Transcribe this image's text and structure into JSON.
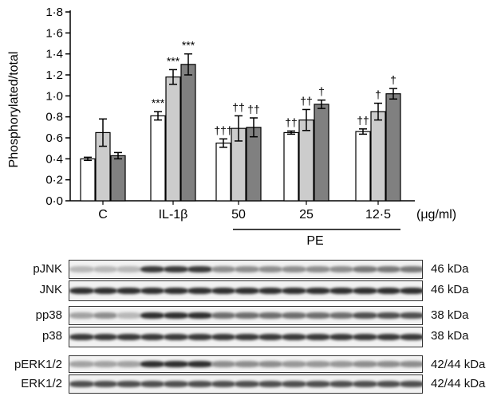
{
  "chart_data": {
    "type": "bar",
    "ylabel": "Phosphorylated/total",
    "ylim": [
      0,
      1.8
    ],
    "yticks": [
      "0·0",
      "0·2",
      "0·4",
      "0·6",
      "0·8",
      "1·0",
      "1·2",
      "1·4",
      "1·6",
      "1·8"
    ],
    "categories": [
      "C",
      "IL-1β",
      "50",
      "25",
      "12·5"
    ],
    "unit": "(μg/ml)",
    "group_label": "PE",
    "series": [
      {
        "color": "#ffffff",
        "values": [
          0.4,
          0.81,
          0.55,
          0.65,
          0.66
        ],
        "errors": [
          0.015,
          0.04,
          0.04,
          0.015,
          0.025
        ]
      },
      {
        "color": "#cccccc",
        "values": [
          0.65,
          1.18,
          0.69,
          0.77,
          0.85
        ],
        "errors": [
          0.13,
          0.07,
          0.12,
          0.1,
          0.08
        ]
      },
      {
        "color": "#808080",
        "values": [
          0.43,
          1.3,
          0.7,
          0.92,
          1.02
        ],
        "errors": [
          0.03,
          0.1,
          0.09,
          0.04,
          0.05
        ]
      }
    ],
    "annotations": [
      [
        "",
        "",
        ""
      ],
      [
        "***",
        "***",
        "***"
      ],
      [
        "†††",
        "††",
        "††"
      ],
      [
        "††",
        "††",
        "†"
      ],
      [
        "††",
        "†",
        "†"
      ]
    ]
  },
  "blots": [
    {
      "label": "pJNK",
      "kda": "46 kDa",
      "intensity": [
        0.25,
        0.25,
        0.25,
        0.85,
        0.85,
        0.85,
        0.45,
        0.45,
        0.45,
        0.45,
        0.45,
        0.45,
        0.55,
        0.55,
        0.55
      ]
    },
    {
      "label": "JNK",
      "kda": "46 kDa",
      "intensity": [
        0.9,
        0.9,
        0.9,
        0.9,
        0.9,
        0.9,
        0.9,
        0.9,
        0.9,
        0.9,
        0.9,
        0.9,
        0.9,
        0.9,
        0.9
      ]
    },
    {
      "label": "pp38",
      "kda": "38 kDa",
      "intensity": [
        0.35,
        0.45,
        0.25,
        0.9,
        0.9,
        0.9,
        0.6,
        0.6,
        0.6,
        0.6,
        0.6,
        0.6,
        0.75,
        0.75,
        0.75
      ]
    },
    {
      "label": "p38",
      "kda": "38 kDa",
      "intensity": [
        0.85,
        0.85,
        0.85,
        0.85,
        0.85,
        0.85,
        0.85,
        0.85,
        0.85,
        0.85,
        0.85,
        0.85,
        0.85,
        0.85,
        0.85
      ]
    },
    {
      "label": "pERK1/2",
      "kda": "42/44 kDa",
      "intensity": [
        0.35,
        0.35,
        0.35,
        0.9,
        0.9,
        0.9,
        0.45,
        0.45,
        0.45,
        0.4,
        0.4,
        0.4,
        0.45,
        0.45,
        0.45
      ]
    },
    {
      "label": "ERK1/2",
      "kda": "42/44 kDa",
      "intensity": [
        0.75,
        0.75,
        0.75,
        0.75,
        0.75,
        0.75,
        0.75,
        0.75,
        0.75,
        0.75,
        0.75,
        0.75,
        0.75,
        0.75,
        0.75
      ]
    }
  ]
}
